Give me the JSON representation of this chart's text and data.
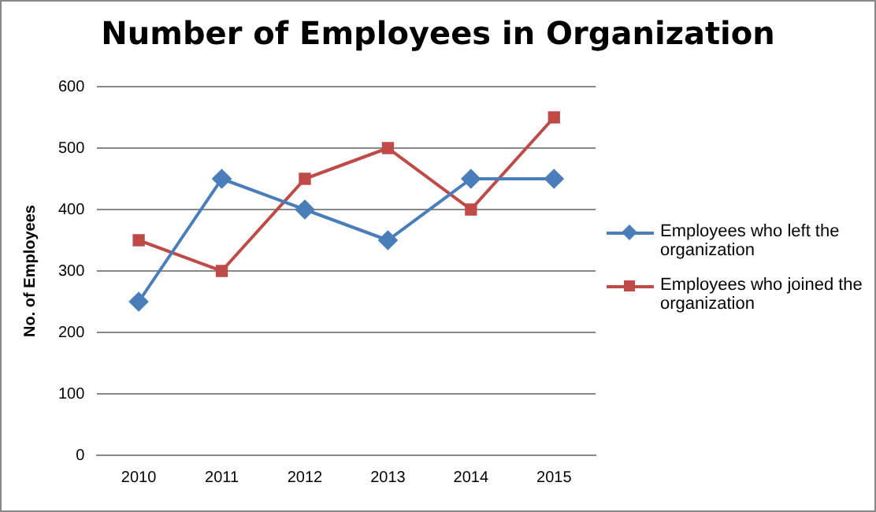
{
  "chart_data": {
    "type": "line",
    "title": "Number of Employees in Organization",
    "ylabel": "No. of Employees",
    "categories": [
      "2010",
      "2011",
      "2012",
      "2013",
      "2014",
      "2015"
    ],
    "series": [
      {
        "name": "Employees who left the organization",
        "color": "#4a7ebb",
        "marker": "diamond",
        "values": [
          250,
          450,
          400,
          350,
          450,
          450
        ]
      },
      {
        "name": "Employees who joined the organization",
        "color": "#be4b48",
        "marker": "square",
        "values": [
          350,
          300,
          450,
          500,
          400,
          550
        ]
      }
    ],
    "ylim": [
      0,
      600
    ],
    "yticks": [
      0,
      100,
      200,
      300,
      400,
      500,
      600
    ],
    "grid": "y",
    "legend": "right"
  }
}
